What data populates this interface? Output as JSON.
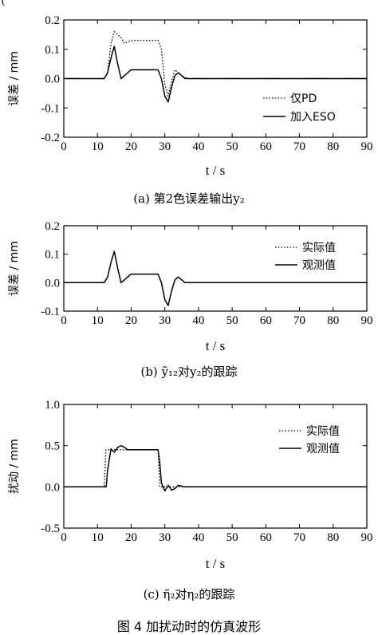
{
  "page": {
    "corner_label": "(",
    "figure_title": "图 4 加扰动时的仿真波形"
  },
  "chart_data": [
    {
      "type": "line",
      "caption": "(a) 第2色误差输出y₂",
      "ylabel": "误差 / mm",
      "xlabel": "t / s",
      "xlim": [
        0,
        90
      ],
      "ylim": [
        -0.2,
        0.2
      ],
      "xticks": [
        0,
        10,
        20,
        30,
        40,
        50,
        60,
        70,
        80,
        90
      ],
      "yticks": [
        -0.2,
        -0.1,
        0.0,
        0.1,
        0.2
      ],
      "ytick_labels": [
        "-0.2",
        "-0.1",
        "0.0",
        "0.1",
        "0.2"
      ],
      "legend_position": "bottom-right",
      "series": [
        {
          "name": "仅PD",
          "style": "dotted",
          "x": [
            0,
            12,
            13,
            14,
            15,
            16,
            17,
            18,
            20,
            22,
            24,
            26,
            28,
            29,
            30,
            31,
            32,
            33,
            34,
            35,
            37,
            40,
            90
          ],
          "y": [
            0,
            0,
            0.02,
            0.12,
            0.16,
            0.15,
            0.14,
            0.12,
            0.13,
            0.13,
            0.13,
            0.13,
            0.13,
            0.1,
            -0.02,
            -0.06,
            -0.01,
            0.03,
            0.02,
            0.01,
            0,
            0,
            0
          ]
        },
        {
          "name": "加入ESO",
          "style": "solid",
          "x": [
            0,
            12,
            13,
            14,
            15,
            16,
            17,
            18,
            19,
            20,
            22,
            24,
            26,
            28,
            29,
            30,
            31,
            32,
            33,
            34,
            35,
            36,
            38,
            90
          ],
          "y": [
            0,
            0,
            0.02,
            0.07,
            0.11,
            0.05,
            0,
            0.01,
            0.02,
            0.03,
            0.03,
            0.03,
            0.03,
            0.03,
            0,
            -0.06,
            -0.08,
            -0.03,
            0.01,
            0.02,
            0.01,
            0,
            0,
            0
          ]
        }
      ]
    },
    {
      "type": "line",
      "caption": "(b) ỹ₁₂对y₂的跟踪",
      "ylabel": "误差 / mm",
      "xlabel": "t / s",
      "xlim": [
        0,
        90
      ],
      "ylim": [
        -0.1,
        0.2
      ],
      "xticks": [
        0,
        10,
        20,
        30,
        40,
        50,
        60,
        70,
        80,
        90
      ],
      "yticks": [
        -0.1,
        0.0,
        0.1,
        0.2
      ],
      "ytick_labels": [
        "-0.1",
        "0.0",
        "0.1",
        "0.2"
      ],
      "legend_position": "top-right",
      "series": [
        {
          "name": "实际值",
          "style": "dotted",
          "x": [
            0,
            12,
            13,
            14,
            15,
            16,
            17,
            18,
            19,
            20,
            22,
            24,
            26,
            28,
            29,
            30,
            31,
            32,
            33,
            34,
            35,
            36,
            38,
            90
          ],
          "y": [
            0,
            0,
            0.02,
            0.07,
            0.11,
            0.05,
            0,
            0.01,
            0.02,
            0.03,
            0.03,
            0.03,
            0.03,
            0.03,
            0,
            -0.06,
            -0.08,
            -0.03,
            0.01,
            0.02,
            0.01,
            0,
            0,
            0
          ]
        },
        {
          "name": "观测值",
          "style": "solid",
          "x": [
            0,
            12,
            13,
            14,
            15,
            16,
            17,
            18,
            19,
            20,
            22,
            24,
            26,
            28,
            29,
            30,
            31,
            32,
            33,
            34,
            35,
            36,
            38,
            90
          ],
          "y": [
            0,
            0,
            0.02,
            0.07,
            0.11,
            0.05,
            0,
            0.01,
            0.02,
            0.03,
            0.03,
            0.03,
            0.03,
            0.03,
            0,
            -0.06,
            -0.08,
            -0.03,
            0.01,
            0.02,
            0.01,
            0,
            0,
            0
          ]
        }
      ]
    },
    {
      "type": "line",
      "caption": "(c) η̃₂对η₂的跟踪",
      "ylabel": "扰动 / mm",
      "xlabel": "t / s",
      "xlim": [
        0,
        90
      ],
      "ylim": [
        -0.5,
        1.0
      ],
      "xticks": [
        0,
        10,
        20,
        30,
        40,
        50,
        60,
        70,
        80,
        90
      ],
      "yticks": [
        -0.5,
        0.0,
        0.5,
        1.0
      ],
      "ytick_labels": [
        "-0.5",
        "0.0",
        "0.5",
        "1.0"
      ],
      "legend_position": "top-right",
      "series": [
        {
          "name": "实际值",
          "style": "dotted",
          "x": [
            0,
            12,
            12.5,
            13,
            15,
            28,
            28.5,
            29,
            90
          ],
          "y": [
            0,
            0,
            0.45,
            0.45,
            0.45,
            0.45,
            0,
            0,
            0
          ]
        },
        {
          "name": "观测值",
          "style": "solid",
          "x": [
            0,
            12.6,
            13,
            14,
            15,
            16,
            17,
            18,
            19,
            20,
            22,
            24,
            26,
            28,
            28.5,
            29,
            30,
            31,
            32,
            33,
            34,
            35,
            36,
            38,
            90
          ],
          "y": [
            0,
            0,
            0.2,
            0.46,
            0.42,
            0.48,
            0.5,
            0.48,
            0.45,
            0.45,
            0.45,
            0.45,
            0.45,
            0.45,
            0.3,
            0.05,
            -0.05,
            0.02,
            -0.04,
            -0.02,
            0.02,
            0.01,
            0,
            0,
            0
          ]
        }
      ]
    }
  ]
}
